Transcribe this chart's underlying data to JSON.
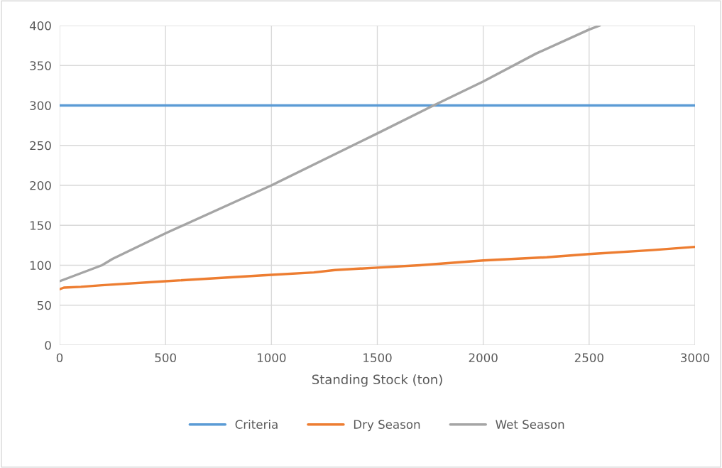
{
  "chart_data": {
    "type": "line",
    "xlabel": "Standing Stock (ton)",
    "xlim": [
      0,
      3000
    ],
    "xticks": [
      0,
      500,
      1000,
      1500,
      2000,
      2500,
      3000
    ],
    "ylim": [
      0,
      400
    ],
    "yticks": [
      0,
      50,
      100,
      150,
      200,
      250,
      300,
      350,
      400
    ],
    "grid": true,
    "legend": "bottom",
    "marker": "none",
    "series": [
      {
        "name": "Criteria",
        "color": "#5b9bd5",
        "x": [
          0,
          3000
        ],
        "values": [
          300,
          300
        ]
      },
      {
        "name": "Dry Season",
        "color": "#ed7d31",
        "x": [
          0,
          20,
          100,
          200,
          500,
          1000,
          1200,
          1300,
          1500,
          1700,
          2000,
          2300,
          2500,
          2800,
          3000
        ],
        "values": [
          70,
          72,
          73,
          75,
          80,
          88,
          91,
          94,
          97,
          100,
          106,
          110,
          114,
          119,
          123
        ]
      },
      {
        "name": "Wet Season",
        "color": "#a5a5a5",
        "x": [
          0,
          200,
          250,
          500,
          1000,
          1500,
          1750,
          2000,
          2250,
          2500,
          2550
        ],
        "values": [
          80,
          100,
          108,
          140,
          200,
          265,
          298,
          330,
          365,
          395,
          400
        ]
      }
    ]
  }
}
